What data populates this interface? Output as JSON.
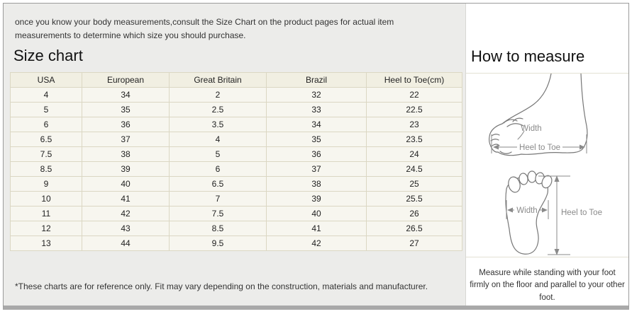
{
  "intro_text": "once you know your body measurements,consult the Size Chart on the product pages for actual item measurements to determine which size you should purchase.",
  "size_chart": {
    "title": "Size chart",
    "columns": [
      "USA",
      "European",
      "Great Britain",
      "Brazil",
      "Heel to Toe(cm)"
    ],
    "rows": [
      [
        "4",
        "34",
        "2",
        "32",
        "22"
      ],
      [
        "5",
        "35",
        "2.5",
        "33",
        "22.5"
      ],
      [
        "6",
        "36",
        "3.5",
        "34",
        "23"
      ],
      [
        "6.5",
        "37",
        "4",
        "35",
        "23.5"
      ],
      [
        "7.5",
        "38",
        "5",
        "36",
        "24"
      ],
      [
        "8.5",
        "39",
        "6",
        "37",
        "24.5"
      ],
      [
        "9",
        "40",
        "6.5",
        "38",
        "25"
      ],
      [
        "10",
        "41",
        "7",
        "39",
        "25.5"
      ],
      [
        "11",
        "42",
        "7.5",
        "40",
        "26"
      ],
      [
        "12",
        "43",
        "8.5",
        "41",
        "26.5"
      ],
      [
        "13",
        "44",
        "9.5",
        "42",
        "27"
      ]
    ],
    "footnote": "*These charts are for reference only. Fit may vary depending on the construction, materials and manufacturer."
  },
  "how_to_measure": {
    "title": "How to measure",
    "side_view_width_label": "Width",
    "side_view_length_label": "Heel to Toe",
    "top_view_width_label": "Width",
    "top_view_length_label": "Heel to Toe",
    "instruction": "Measure while standing with your foot firmly on the floor and parallel to your other foot."
  },
  "colors": {
    "left_panel_bg": "#ececea",
    "right_panel_bg": "#ffffff",
    "table_cell_bg": "#f7f6ef",
    "table_header_bg": "#f1efe2",
    "table_border": "#dbd7c3",
    "frame_border": "#9b9b9b",
    "bottom_strip": "#a9a9a9",
    "diagram_stroke": "#777777",
    "ruler_gray": "#8a8a8a"
  }
}
